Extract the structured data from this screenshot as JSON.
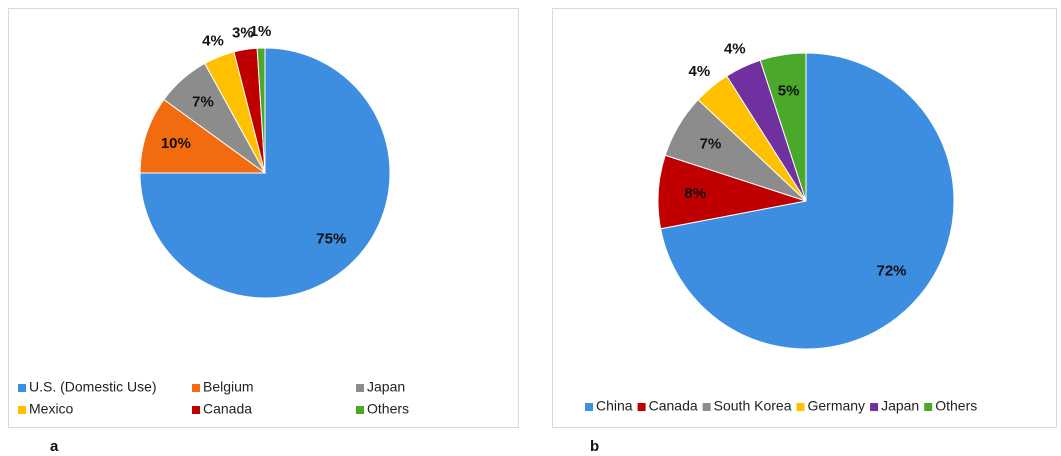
{
  "chart_data": [
    {
      "type": "pie",
      "panel_label": "a",
      "categories": [
        "U.S. (Domestic Use)",
        "Belgium",
        "Japan",
        "Mexico",
        "Canada",
        "Others"
      ],
      "values": [
        75,
        10,
        7,
        4,
        3,
        1
      ],
      "value_labels": [
        "75%",
        "10%",
        "7%",
        "4%",
        "3%",
        "1%"
      ],
      "colors": [
        "#3d8ee0",
        "#f26b0f",
        "#8c8c8c",
        "#ffc000",
        "#c00000",
        "#4aa82a"
      ],
      "legend": "bottom"
    },
    {
      "type": "pie",
      "panel_label": "b",
      "categories": [
        "China",
        "Canada",
        "South Korea",
        "Germany",
        "Japan",
        "Others"
      ],
      "values": [
        72,
        8,
        7,
        4,
        4,
        5
      ],
      "value_labels": [
        "72%",
        "8%",
        "7%",
        "4%",
        "4%",
        "5%"
      ],
      "colors": [
        "#3d8ee0",
        "#c00000",
        "#8c8c8c",
        "#ffc000",
        "#7030a0",
        "#4aa82a"
      ],
      "legend": "bottom"
    }
  ]
}
